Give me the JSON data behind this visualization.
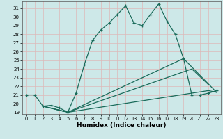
{
  "xlabel": "Humidex (Indice chaleur)",
  "bg_color": "#cde8e8",
  "grid_color": "#deb8b8",
  "line_color": "#1a6b5a",
  "xlim": [
    -0.5,
    23.5
  ],
  "ylim": [
    18.8,
    31.8
  ],
  "yticks": [
    19,
    20,
    21,
    22,
    23,
    24,
    25,
    26,
    27,
    28,
    29,
    30,
    31
  ],
  "xticks": [
    0,
    1,
    2,
    3,
    4,
    5,
    6,
    7,
    8,
    9,
    10,
    11,
    12,
    13,
    14,
    15,
    16,
    17,
    18,
    19,
    20,
    21,
    22,
    23
  ],
  "lines": [
    {
      "x": [
        0,
        1,
        2,
        3,
        4,
        5,
        6,
        7,
        8,
        9,
        10,
        11,
        12,
        13,
        14,
        15,
        16,
        17,
        18,
        19,
        20,
        21,
        22,
        23
      ],
      "y": [
        21.0,
        21.0,
        19.7,
        19.8,
        19.5,
        19.0,
        21.2,
        24.5,
        27.3,
        28.5,
        29.3,
        30.3,
        31.3,
        29.3,
        29.0,
        30.3,
        31.5,
        29.5,
        28.0,
        25.2,
        21.0,
        21.0,
        21.2,
        21.5
      ],
      "marker": true
    },
    {
      "x": [
        2,
        5,
        19,
        23
      ],
      "y": [
        19.7,
        19.0,
        25.2,
        21.3
      ],
      "marker": false
    },
    {
      "x": [
        2,
        5,
        20,
        22
      ],
      "y": [
        19.7,
        19.0,
        24.0,
        22.2
      ],
      "marker": false
    },
    {
      "x": [
        2,
        5,
        22,
        23
      ],
      "y": [
        19.7,
        19.0,
        21.5,
        21.3
      ],
      "marker": false
    }
  ]
}
